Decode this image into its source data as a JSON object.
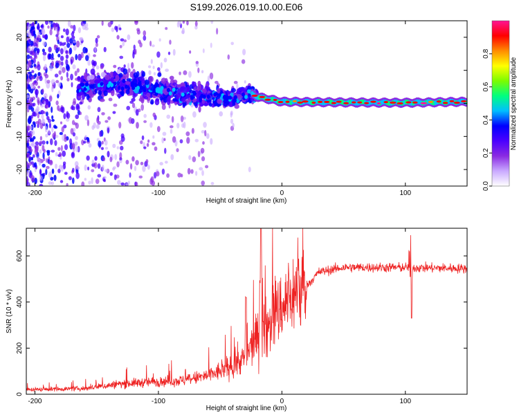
{
  "figure_title": "S199.2026.019.10.00.E06",
  "chart_data": [
    {
      "type": "heatmap",
      "name": "spectrogram",
      "xlabel": "Height of straight line (km)",
      "ylabel": "Frequency (Hz)",
      "xlim": [
        -207,
        150
      ],
      "ylim": [
        -25,
        25
      ],
      "xticks": [
        -200,
        -100,
        0,
        100
      ],
      "yticks": [
        -20,
        -10,
        0,
        10,
        20
      ],
      "colorbar": {
        "label": "Normalized spectral amplitude",
        "range": [
          0,
          1
        ],
        "ticks": [
          "0.0",
          "0.2",
          "0.4",
          "0.6",
          "0.8"
        ],
        "colors": [
          "#ffffff",
          "#c9a9ff",
          "#8a2be2",
          "#4b00ff",
          "#0000ff",
          "#00bfff",
          "#00ff7f",
          "#7cfc00",
          "#ffff00",
          "#ff8c00",
          "#ff0000",
          "#ff1493"
        ]
      },
      "signal_trace": {
        "description_points_x_km": [
          -160,
          -130,
          -100,
          -70,
          -40,
          -25,
          -20,
          0,
          50,
          100,
          150
        ],
        "frequency_hz": [
          5,
          6,
          4,
          2.5,
          1.5,
          3,
          2,
          0.5,
          0.3,
          0.2,
          0.5
        ]
      },
      "noise_extent_x_km": [
        -207,
        -25
      ]
    },
    {
      "type": "line",
      "name": "snr",
      "xlabel": "Height of straight line (km)",
      "ylabel": "SNR (10 * v/v)",
      "xlim": [
        -207,
        150
      ],
      "ylim": [
        0,
        720
      ],
      "xticks": [
        -200,
        -100,
        0,
        100
      ],
      "yticks": [
        0,
        200,
        400,
        600
      ],
      "color": "#ee2222",
      "trend": {
        "x": [
          -207,
          -160,
          -130,
          -100,
          -80,
          -60,
          -40,
          -30,
          -20,
          -10,
          0,
          10,
          20,
          30,
          50,
          100,
          150
        ],
        "y": [
          20,
          25,
          45,
          55,
          60,
          80,
          120,
          160,
          250,
          320,
          380,
          440,
          470,
          530,
          550,
          550,
          545
        ]
      },
      "spikes": [
        {
          "x": -17,
          "y": 720
        },
        {
          "x": -29,
          "y": 420
        },
        {
          "x": 104,
          "y": 690
        },
        {
          "x": 105,
          "y": 330
        }
      ]
    }
  ]
}
